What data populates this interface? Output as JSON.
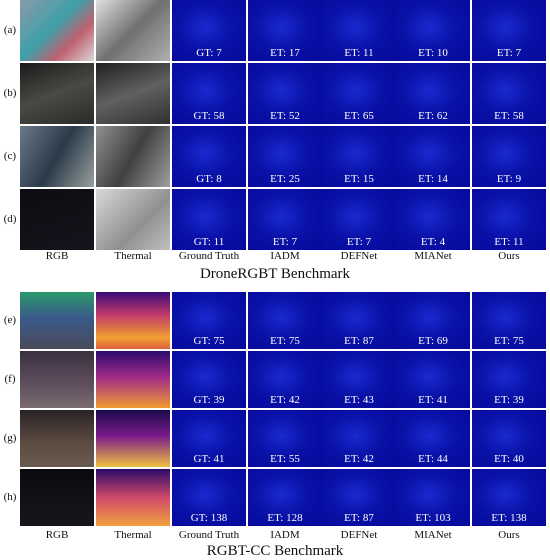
{
  "benchmarks": [
    {
      "title": "DroneRGBT Benchmark",
      "columns": [
        "RGB",
        "Thermal",
        "Ground Truth",
        "IADM",
        "DEFNet",
        "MIANet",
        "Ours"
      ],
      "rows": [
        {
          "label": "(a)",
          "counts": [
            "GT: 7",
            "ET: 17",
            "ET: 11",
            "ET: 10",
            "ET: 7"
          ]
        },
        {
          "label": "(b)",
          "counts": [
            "GT: 58",
            "ET: 52",
            "ET: 65",
            "ET: 62",
            "ET: 58"
          ]
        },
        {
          "label": "(c)",
          "counts": [
            "GT: 8",
            "ET: 25",
            "ET: 15",
            "ET: 14",
            "ET: 9"
          ]
        },
        {
          "label": "(d)",
          "counts": [
            "GT: 11",
            "ET: 7",
            "ET: 7",
            "ET: 4",
            "ET: 11"
          ]
        }
      ]
    },
    {
      "title": "RGBT-CC Benchmark",
      "columns": [
        "RGB",
        "Thermal",
        "Ground Truth",
        "IADM",
        "DEFNet",
        "MIANet",
        "Ours"
      ],
      "rows": [
        {
          "label": "(e)",
          "counts": [
            "GT: 75",
            "ET: 75",
            "ET: 87",
            "ET: 69",
            "ET: 75"
          ]
        },
        {
          "label": "(f)",
          "counts": [
            "GT: 39",
            "ET: 42",
            "ET: 43",
            "ET: 41",
            "ET: 39"
          ]
        },
        {
          "label": "(g)",
          "counts": [
            "GT: 41",
            "ET: 55",
            "ET: 42",
            "ET: 44",
            "ET: 40"
          ]
        },
        {
          "label": "(h)",
          "counts": [
            "GT: 138",
            "ET: 128",
            "ET: 87",
            "ET: 103",
            "ET: 138"
          ]
        }
      ]
    }
  ]
}
